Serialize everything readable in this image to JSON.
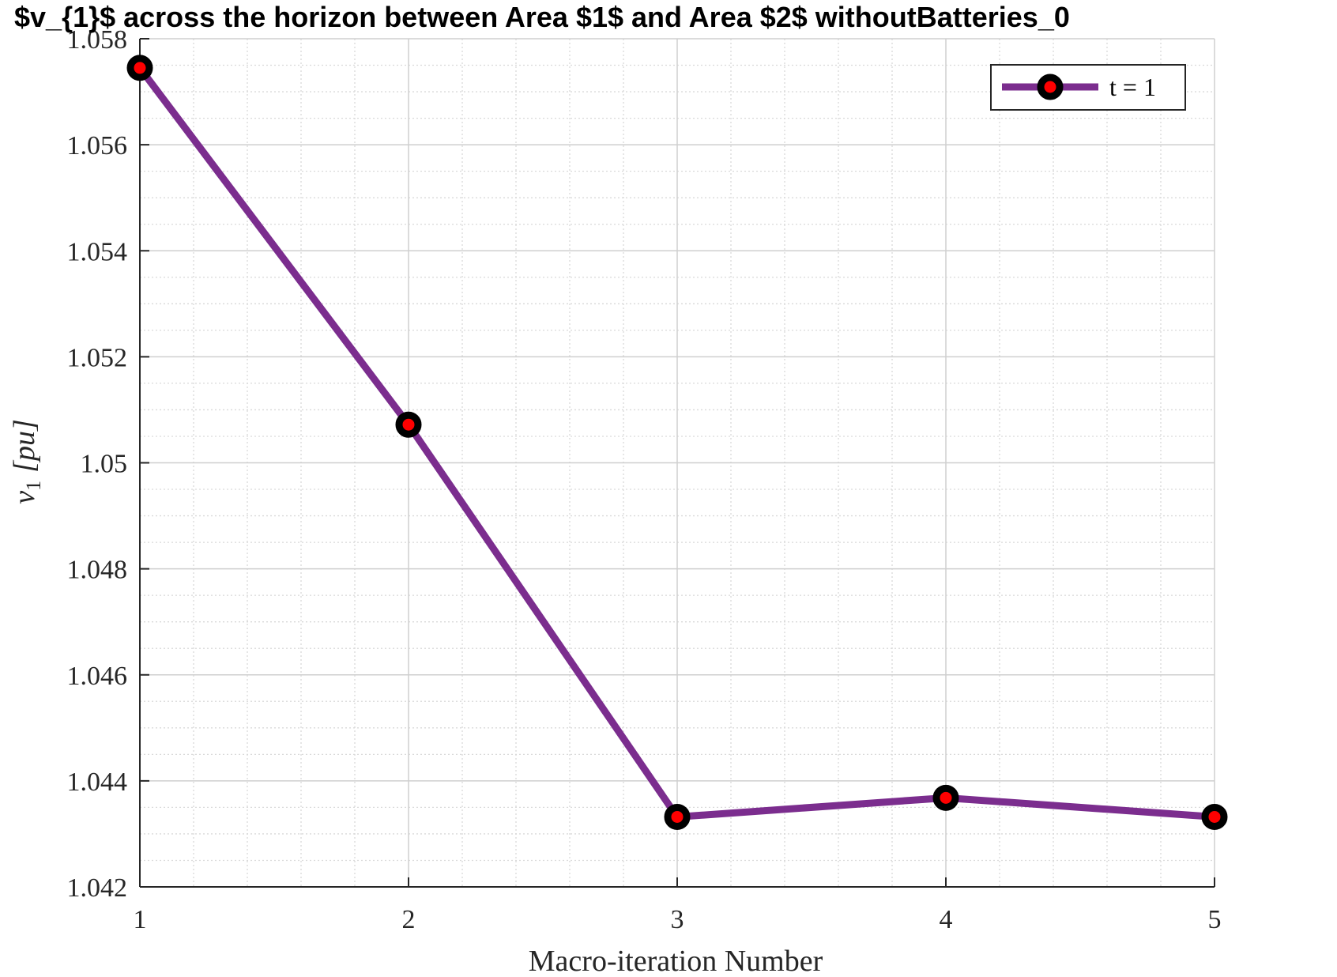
{
  "chart_data": {
    "type": "line",
    "title": "$v_{1}$ across the horizon between Area $1$ and Area $2$ withoutBatteries_0",
    "xlabel": "Macro-iteration Number",
    "ylabel": "v_1 [pu]",
    "ylabel_main": "v",
    "ylabel_sub": "1",
    "ylabel_unit": "[pu]",
    "x": [
      1,
      2,
      3,
      4,
      5
    ],
    "xlim": [
      1,
      5
    ],
    "ylim": [
      1.042,
      1.058
    ],
    "xticks": [
      1,
      2,
      3,
      4,
      5
    ],
    "xtick_labels": [
      "1",
      "2",
      "3",
      "4",
      "5"
    ],
    "yticks": [
      1.042,
      1.044,
      1.046,
      1.048,
      1.05,
      1.052,
      1.054,
      1.056,
      1.058
    ],
    "ytick_labels": [
      "1.042",
      "1.044",
      "1.046",
      "1.048",
      "1.05",
      "1.052",
      "1.054",
      "1.056",
      "1.058"
    ],
    "grid": true,
    "minor_grid": true,
    "legend_position": "top-right",
    "series": [
      {
        "name": "t = 1",
        "values": [
          1.05745,
          1.05072,
          1.04332,
          1.04368,
          1.04332
        ],
        "line_color": "#7b2d8e",
        "marker_edge_color": "#000000",
        "marker_face_color": "#ff0000"
      }
    ]
  }
}
